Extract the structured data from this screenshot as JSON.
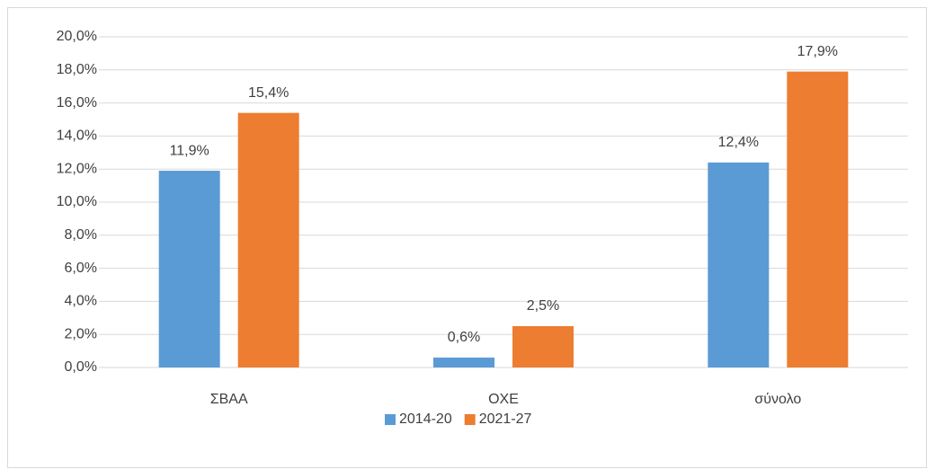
{
  "chart_data": {
    "type": "bar",
    "categories": [
      "ΣΒΑΑ",
      "ΟΧΕ",
      "σύνολο"
    ],
    "series": [
      {
        "name": "2014-20",
        "color": "#5b9bd5",
        "values": [
          11.9,
          0.6,
          12.4
        ],
        "value_labels": [
          "11,9%",
          "0,6%",
          "12,4%"
        ]
      },
      {
        "name": "2021-27",
        "color": "#ed7d31",
        "values": [
          15.4,
          2.5,
          17.9
        ],
        "value_labels": [
          "15,4%",
          "2,5%",
          "17,9%"
        ]
      }
    ],
    "ylim": [
      0,
      20
    ],
    "yticks": [
      {
        "value": 0,
        "label": "0,0%"
      },
      {
        "value": 2,
        "label": "2,0%"
      },
      {
        "value": 4,
        "label": "4,0%"
      },
      {
        "value": 6,
        "label": "6,0%"
      },
      {
        "value": 8,
        "label": "8,0%"
      },
      {
        "value": 10,
        "label": "10,0%"
      },
      {
        "value": 12,
        "label": "12,0%"
      },
      {
        "value": 14,
        "label": "14,0%"
      },
      {
        "value": 16,
        "label": "16,0%"
      },
      {
        "value": 18,
        "label": "18,0%"
      },
      {
        "value": 20,
        "label": "20,0%"
      }
    ],
    "grid": true,
    "legend": "bottom"
  }
}
